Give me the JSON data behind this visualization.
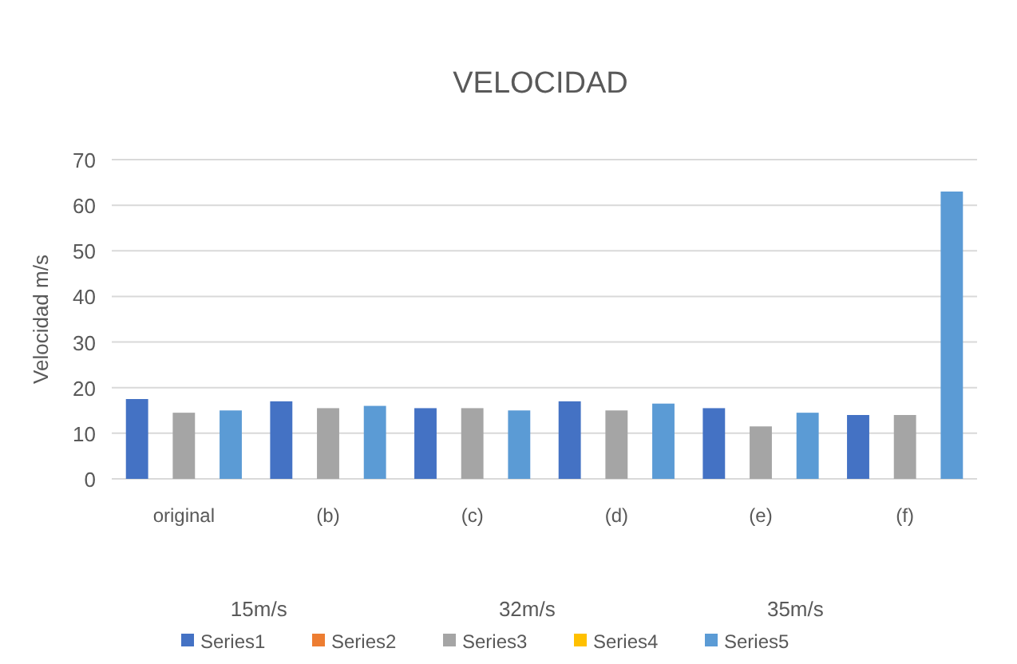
{
  "chart_data": {
    "type": "bar",
    "title": "VELOCIDAD",
    "ylabel": "Velocidad m/s",
    "categories": [
      "original",
      "(b)",
      "(c)",
      "(d)",
      "(e)",
      "(f)"
    ],
    "series": [
      {
        "name": "Series1",
        "color": "#4472c4",
        "values": [
          17.5,
          17,
          15.5,
          17,
          15.5,
          14
        ]
      },
      {
        "name": "Series2",
        "color": "#ed7d31",
        "values": [
          0,
          0,
          0,
          0,
          0,
          0
        ]
      },
      {
        "name": "Series3",
        "color": "#a5a5a5",
        "values": [
          14.5,
          15.5,
          15.5,
          15,
          11.5,
          14
        ]
      },
      {
        "name": "Series4",
        "color": "#ffc000",
        "values": [
          0,
          0,
          0,
          0,
          0,
          0
        ]
      },
      {
        "name": "Series5",
        "color": "#5b9bd5",
        "values": [
          15,
          16,
          15,
          16.5,
          14.5,
          63
        ]
      }
    ],
    "ylim": [
      0,
      70
    ],
    "yticks": [
      0,
      10,
      20,
      30,
      40,
      50,
      60,
      70
    ],
    "grid": "y",
    "legend": "bottom",
    "annotations": [
      "15m/s",
      "32m/s",
      "35m/s"
    ]
  }
}
